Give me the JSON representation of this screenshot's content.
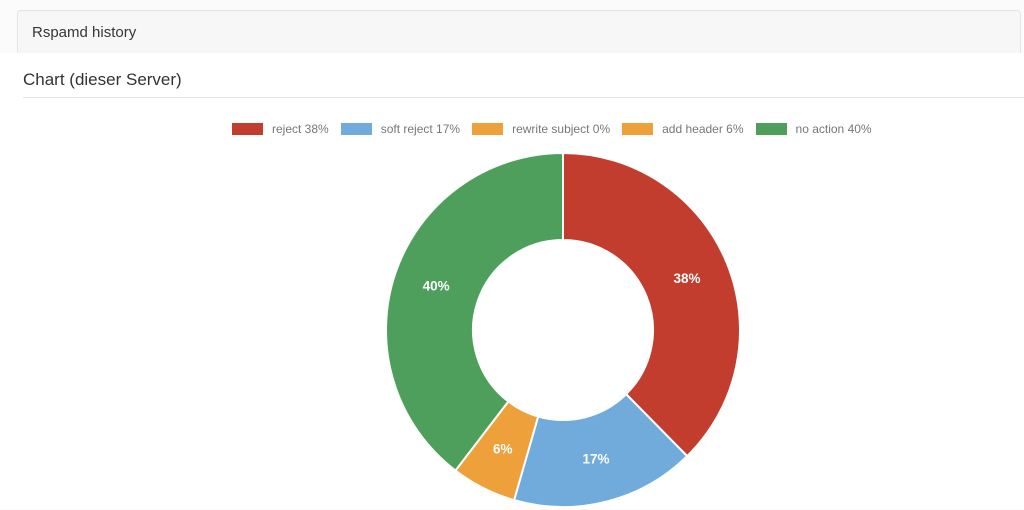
{
  "panel": {
    "title": "Rspamd history"
  },
  "content": {
    "heading": "Chart (dieser Server)"
  },
  "theme": {
    "panel_bg": "#f7f7f7",
    "panel_border": "#e4e4e4",
    "divider": "#e5e5e5",
    "legend_text": "#777777"
  },
  "chart_data": {
    "type": "pie",
    "donut": true,
    "title": "",
    "unit": "%",
    "legend_position": "top",
    "start_angle": "top",
    "direction": "clockwise",
    "slices": [
      {
        "name": "reject",
        "value": 38,
        "label": "38%",
        "legend_text": "reject 38%",
        "color": "#c33d2e"
      },
      {
        "name": "soft reject",
        "value": 17,
        "label": "17%",
        "legend_text": "soft reject 17%",
        "color": "#70abdc"
      },
      {
        "name": "rewrite subject",
        "value": 0,
        "label": "0%",
        "legend_text": "rewrite subject 0%",
        "color": "#eea03b"
      },
      {
        "name": "add header",
        "value": 6,
        "label": "6%",
        "legend_text": "add header 6%",
        "color": "#eea03b"
      },
      {
        "name": "no action",
        "value": 40,
        "label": "40%",
        "legend_text": "no action 40%",
        "color": "#4d9f5b"
      }
    ]
  }
}
